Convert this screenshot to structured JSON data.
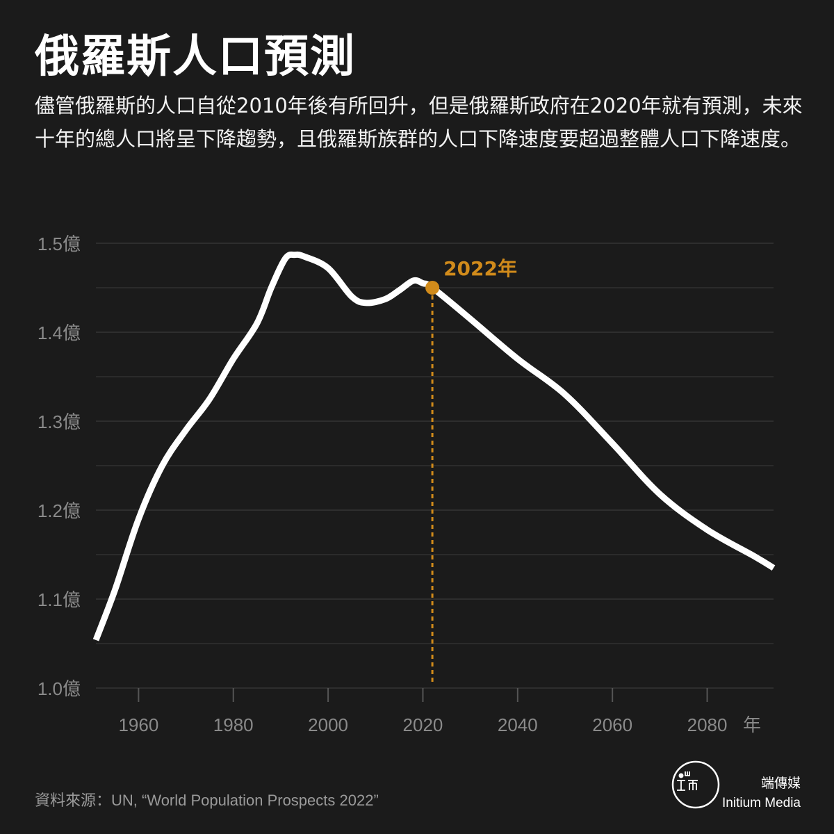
{
  "header": {
    "title": "俄羅斯人口預測",
    "description": "儘管俄羅斯的人口自從2010年後有所回升，但是俄羅斯政府在2020年就有預測，未來十年的總人口將呈下降趨勢，且俄羅斯族群的人口下降速度要超過整體人口下降速度。"
  },
  "chart_data": {
    "type": "line",
    "title": "",
    "xlabel": "年",
    "ylabel": "",
    "x_ticks": [
      1960,
      1980,
      2000,
      2020,
      2040,
      2060,
      2080
    ],
    "x_tick_labels": [
      "1960",
      "1980",
      "2000",
      "2020",
      "2040",
      "2060",
      "2080"
    ],
    "y_ticks": [
      1.0,
      1.1,
      1.2,
      1.3,
      1.4,
      1.5
    ],
    "y_tick_labels": [
      "1.0億",
      "1.1億",
      "1.2億",
      "1.3億",
      "1.4億",
      "1.5億"
    ],
    "xlim": [
      1951,
      2094
    ],
    "ylim": [
      1.0,
      1.5
    ],
    "grid": "horizontal",
    "series": [
      {
        "name": "",
        "x": [
          1950,
          1955,
          1960,
          1965,
          1970,
          1975,
          1980,
          1985,
          1988,
          1991,
          1993,
          1995,
          2000,
          2005,
          2008,
          2012,
          2015,
          2018,
          2020,
          2022,
          2030,
          2040,
          2050,
          2060,
          2070,
          2080,
          2090,
          2094
        ],
        "y": [
          1.04,
          1.11,
          1.19,
          1.25,
          1.29,
          1.325,
          1.37,
          1.41,
          1.45,
          1.483,
          1.487,
          1.485,
          1.472,
          1.44,
          1.433,
          1.437,
          1.447,
          1.458,
          1.455,
          1.45,
          1.415,
          1.37,
          1.33,
          1.275,
          1.218,
          1.178,
          1.148,
          1.135
        ]
      }
    ],
    "highlight": {
      "x": 2022,
      "y": 1.45,
      "label": "2022年"
    },
    "colors": {
      "line": "#ffffff",
      "highlight": "#d18b1b",
      "grid": "#3b3b3b",
      "tick_text": "#8a8a8a"
    }
  },
  "footer": {
    "source": "資料來源：UN, “World Population Prospects 2022”",
    "brand_zh": "端傳媒",
    "brand_en": "Initium Media"
  }
}
